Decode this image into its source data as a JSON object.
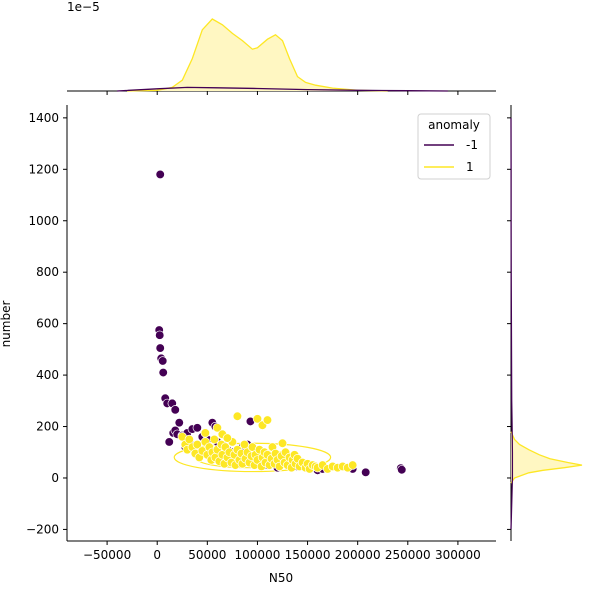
{
  "chart_data": {
    "type": "scatter",
    "title": "",
    "xlabel": "N50",
    "ylabel": "number",
    "xlim": [
      -90000,
      338000
    ],
    "ylim": [
      -245,
      1450
    ],
    "x_ticks": [
      -50000,
      0,
      50000,
      100000,
      150000,
      200000,
      250000,
      300000
    ],
    "x_tick_labels": [
      "−50000",
      "0",
      "50000",
      "100000",
      "150000",
      "200000",
      "250000",
      "300000"
    ],
    "y_ticks": [
      -200,
      0,
      200,
      400,
      600,
      800,
      1000,
      1200,
      1400
    ],
    "y_tick_labels": [
      "−200",
      "0",
      "200",
      "400",
      "600",
      "800",
      "1000",
      "1200",
      "1400"
    ],
    "top_marginal_offset_label": "1e−5",
    "grid": false,
    "legend": {
      "title": "anomaly",
      "placement": "top-right",
      "entries": [
        {
          "label": "-1",
          "color": "#440154"
        },
        {
          "label": "1",
          "color": "#fde725"
        }
      ]
    },
    "series": [
      {
        "name": "-1",
        "color": "#440154",
        "points": [
          [
            3000,
            1180
          ],
          [
            2000,
            575
          ],
          [
            2500,
            555
          ],
          [
            3000,
            505
          ],
          [
            4000,
            465
          ],
          [
            5500,
            455
          ],
          [
            6000,
            410
          ],
          [
            8000,
            310
          ],
          [
            10000,
            290
          ],
          [
            15000,
            290
          ],
          [
            18000,
            265
          ],
          [
            12000,
            140
          ],
          [
            16000,
            175
          ],
          [
            18000,
            185
          ],
          [
            20000,
            170
          ],
          [
            22000,
            215
          ],
          [
            25000,
            165
          ],
          [
            30000,
            175
          ],
          [
            35000,
            190
          ],
          [
            40000,
            195
          ],
          [
            45000,
            160
          ],
          [
            50000,
            150
          ],
          [
            55000,
            215
          ],
          [
            58000,
            200
          ],
          [
            60000,
            140
          ],
          [
            65000,
            130
          ],
          [
            70000,
            110
          ],
          [
            75000,
            100
          ],
          [
            80000,
            90
          ],
          [
            85000,
            120
          ],
          [
            90000,
            130
          ],
          [
            93000,
            220
          ],
          [
            95000,
            60
          ],
          [
            100000,
            75
          ],
          [
            105000,
            60
          ],
          [
            110000,
            50
          ],
          [
            115000,
            70
          ],
          [
            120000,
            40
          ],
          [
            130000,
            50
          ],
          [
            140000,
            45
          ],
          [
            150000,
            40
          ],
          [
            160000,
            30
          ],
          [
            165000,
            35
          ],
          [
            195000,
            35
          ],
          [
            208000,
            22
          ],
          [
            243000,
            38
          ],
          [
            244000,
            32
          ],
          [
            28000,
            120
          ],
          [
            32000,
            140
          ]
        ]
      },
      {
        "name": "1",
        "color": "#fde725",
        "points": [
          [
            25000,
            160
          ],
          [
            28000,
            130
          ],
          [
            30000,
            110
          ],
          [
            32000,
            150
          ],
          [
            35000,
            120
          ],
          [
            38000,
            95
          ],
          [
            40000,
            130
          ],
          [
            42000,
            80
          ],
          [
            45000,
            105
          ],
          [
            48000,
            140
          ],
          [
            50000,
            90
          ],
          [
            52000,
            120
          ],
          [
            54000,
            70
          ],
          [
            55000,
            100
          ],
          [
            57000,
            150
          ],
          [
            58000,
            80
          ],
          [
            60000,
            110
          ],
          [
            62000,
            65
          ],
          [
            64000,
            130
          ],
          [
            65000,
            90
          ],
          [
            67000,
            55
          ],
          [
            68000,
            120
          ],
          [
            70000,
            80
          ],
          [
            72000,
            100
          ],
          [
            74000,
            60
          ],
          [
            75000,
            140
          ],
          [
            77000,
            90
          ],
          [
            78000,
            50
          ],
          [
            80000,
            110
          ],
          [
            82000,
            70
          ],
          [
            84000,
            95
          ],
          [
            85000,
            55
          ],
          [
            87000,
            130
          ],
          [
            88000,
            75
          ],
          [
            90000,
            100
          ],
          [
            92000,
            60
          ],
          [
            94000,
            85
          ],
          [
            95000,
            120
          ],
          [
            97000,
            50
          ],
          [
            98000,
            90
          ],
          [
            100000,
            70
          ],
          [
            102000,
            110
          ],
          [
            104000,
            45
          ],
          [
            105000,
            80
          ],
          [
            107000,
            100
          ],
          [
            108000,
            60
          ],
          [
            110000,
            90
          ],
          [
            112000,
            50
          ],
          [
            114000,
            75
          ],
          [
            115000,
            120
          ],
          [
            117000,
            55
          ],
          [
            118000,
            95
          ],
          [
            120000,
            70
          ],
          [
            122000,
            45
          ],
          [
            124000,
            85
          ],
          [
            125000,
            135
          ],
          [
            127000,
            60
          ],
          [
            128000,
            100
          ],
          [
            130000,
            50
          ],
          [
            132000,
            80
          ],
          [
            134000,
            40
          ],
          [
            135000,
            70
          ],
          [
            137000,
            90
          ],
          [
            138000,
            55
          ],
          [
            140000,
            75
          ],
          [
            142000,
            45
          ],
          [
            145000,
            60
          ],
          [
            148000,
            40
          ],
          [
            150000,
            55
          ],
          [
            152000,
            35
          ],
          [
            155000,
            50
          ],
          [
            158000,
            45
          ],
          [
            160000,
            40
          ],
          [
            165000,
            50
          ],
          [
            170000,
            35
          ],
          [
            175000,
            45
          ],
          [
            180000,
            40
          ],
          [
            185000,
            45
          ],
          [
            190000,
            40
          ],
          [
            195000,
            50
          ],
          [
            60000,
            195
          ],
          [
            65000,
            170
          ],
          [
            80000,
            240
          ],
          [
            100000,
            230
          ],
          [
            105000,
            205
          ],
          [
            110000,
            225
          ],
          [
            48000,
            175
          ],
          [
            70000,
            155
          ]
        ]
      }
    ],
    "contours": [
      {
        "series": "1",
        "color": "#fde725",
        "cx": 95000,
        "cy": 80,
        "rx": 78000,
        "ry": 55
      },
      {
        "series": "1",
        "color": "#fde725",
        "cx": 90000,
        "cy": 75,
        "rx": 50000,
        "ry": 35
      },
      {
        "series": "1",
        "color": "#fde725",
        "cx": 80000,
        "cy": 75,
        "rx": 25000,
        "ry": 18
      }
    ],
    "top_marginal": {
      "series": [
        {
          "name": "1",
          "color": "#fde725",
          "fill": "#fff7c2",
          "x": [
            -30000,
            0,
            15000,
            25000,
            35000,
            45000,
            55000,
            65000,
            75000,
            85000,
            95000,
            100000,
            110000,
            118000,
            125000,
            132000,
            140000,
            148000,
            158000,
            175000,
            200000,
            230000
          ],
          "y": [
            0,
            0.01,
            0.05,
            0.15,
            0.45,
            0.85,
            1.0,
            0.92,
            0.8,
            0.7,
            0.58,
            0.6,
            0.72,
            0.78,
            0.7,
            0.45,
            0.2,
            0.12,
            0.08,
            0.04,
            0.01,
            0
          ]
        },
        {
          "name": "-1",
          "color": "#440154",
          "fill": "none",
          "x": [
            -40000,
            0,
            30000,
            60000,
            100000,
            150000,
            200000,
            250000,
            290000
          ],
          "y": [
            0,
            0.03,
            0.05,
            0.045,
            0.035,
            0.02,
            0.01,
            0.004,
            0
          ]
        }
      ]
    },
    "right_marginal": {
      "series": [
        {
          "name": "1",
          "color": "#fde725",
          "fill": "#fff7c2",
          "y": [
            -20,
            0,
            20,
            30,
            40,
            50,
            60,
            75,
            90,
            110,
            130,
            150,
            180
          ],
          "d": [
            0,
            0.05,
            0.25,
            0.45,
            0.75,
            1.0,
            0.8,
            0.55,
            0.4,
            0.25,
            0.12,
            0.05,
            0
          ]
        },
        {
          "name": "-1",
          "color": "#440154",
          "fill": "none",
          "y": [
            -200,
            0,
            100,
            200,
            300,
            400,
            600,
            800,
            1000,
            1200,
            1400
          ],
          "d": [
            0,
            0.02,
            0.02,
            0.015,
            0.01,
            0.008,
            0.005,
            0.003,
            0.002,
            0.002,
            0
          ]
        }
      ]
    }
  }
}
